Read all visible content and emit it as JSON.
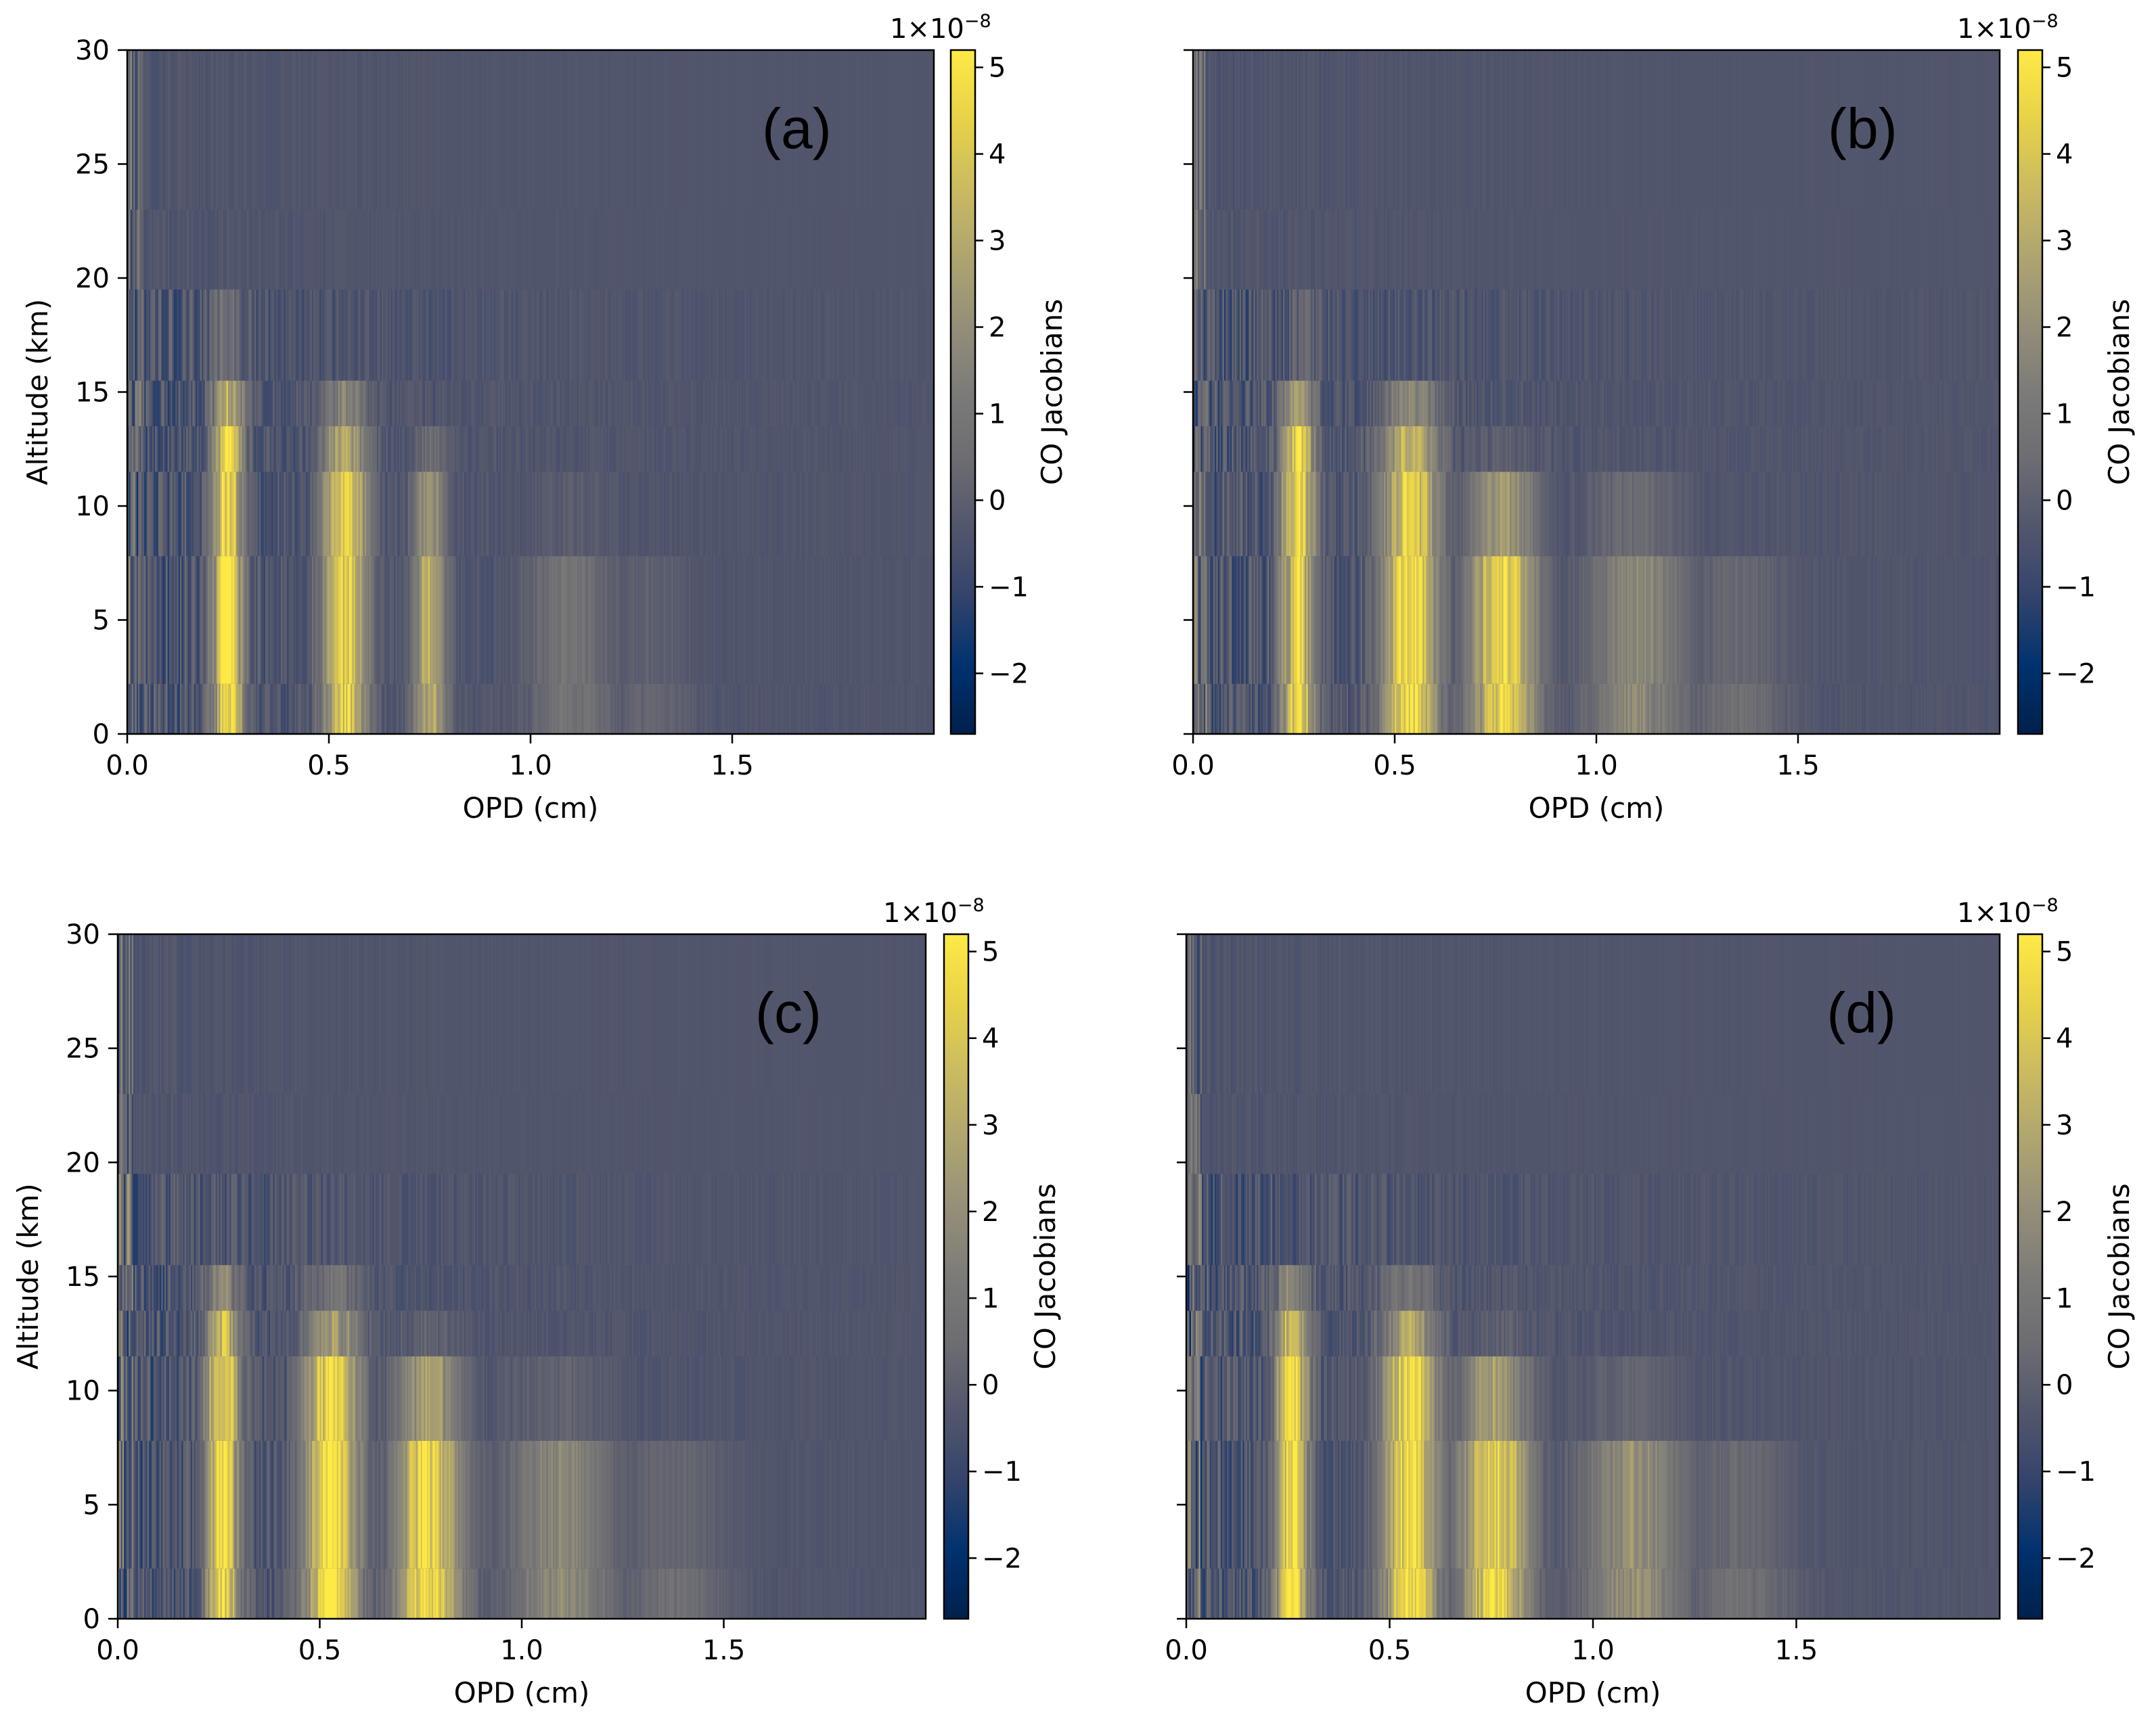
{
  "figure": {
    "colormap": "cividis"
  },
  "chart_data": [
    {
      "type": "heatmap",
      "panel_label": "(a)",
      "xlabel": "OPD (cm)",
      "ylabel": "Altitude (km)",
      "colorbar_label": "CO Jacobians",
      "colorbar_multiplier": "1×10",
      "colorbar_exponent": "−8",
      "xlim": [
        0,
        2.0
      ],
      "ylim": [
        0,
        30
      ],
      "xticks": [
        0.0,
        0.5,
        1.0,
        1.5
      ],
      "xtick_labels": [
        "0.0",
        "0.5",
        "1.0",
        "1.5"
      ],
      "yticks": [
        0,
        5,
        10,
        15,
        20,
        25,
        30
      ],
      "ytick_labels": [
        "0",
        "5",
        "10",
        "15",
        "20",
        "25",
        "30"
      ],
      "clim": [
        -2.7,
        5.2
      ],
      "cticks": [
        -2,
        -1,
        0,
        1,
        2,
        3,
        4,
        5
      ],
      "ctick_labels": [
        "−2",
        "−1",
        "0",
        "1",
        "2",
        "3",
        "4",
        "5"
      ],
      "lobes": [
        {
          "center_opd": 0.25,
          "width_opd": 0.055,
          "peak": 5.2,
          "top_km": 19
        },
        {
          "center_opd": 0.54,
          "width_opd": 0.08,
          "peak": 4.8,
          "top_km": 17
        },
        {
          "center_opd": 0.75,
          "width_opd": 0.06,
          "peak": 3.5,
          "top_km": 14
        },
        {
          "center_opd": 1.1,
          "width_opd": 0.15,
          "peak": 1.2,
          "top_km": 11
        },
        {
          "center_opd": 1.3,
          "width_opd": 0.15,
          "peak": 0.6,
          "top_km": 9
        }
      ]
    },
    {
      "type": "heatmap",
      "panel_label": "(b)",
      "xlabel": "OPD (cm)",
      "ylabel": "",
      "colorbar_label": "CO Jacobians",
      "colorbar_multiplier": "1×10",
      "colorbar_exponent": "−8",
      "xlim": [
        0,
        2.0
      ],
      "ylim": [
        0,
        30
      ],
      "xticks": [
        0.0,
        0.5,
        1.0,
        1.5
      ],
      "xtick_labels": [
        "0.0",
        "0.5",
        "1.0",
        "1.5"
      ],
      "yticks": [
        0,
        5,
        10,
        15,
        20,
        25,
        30
      ],
      "ytick_labels": [
        "",
        "",
        "",
        "",
        "",
        "",
        ""
      ],
      "clim": [
        -2.7,
        5.2
      ],
      "cticks": [
        -2,
        -1,
        0,
        1,
        2,
        3,
        4,
        5
      ],
      "ctick_labels": [
        "−2",
        "−1",
        "0",
        "1",
        "2",
        "3",
        "4",
        "5"
      ],
      "lobes": [
        {
          "center_opd": 0.26,
          "width_opd": 0.06,
          "peak": 5.2,
          "top_km": 18
        },
        {
          "center_opd": 0.54,
          "width_opd": 0.1,
          "peak": 5.2,
          "top_km": 17
        },
        {
          "center_opd": 0.77,
          "width_opd": 0.12,
          "peak": 5.0,
          "top_km": 13
        },
        {
          "center_opd": 1.1,
          "width_opd": 0.17,
          "peak": 2.2,
          "top_km": 12
        },
        {
          "center_opd": 1.35,
          "width_opd": 0.17,
          "peak": 1.0,
          "top_km": 9
        }
      ]
    },
    {
      "type": "heatmap",
      "panel_label": "(c)",
      "xlabel": "OPD (cm)",
      "ylabel": "Altitude (km)",
      "colorbar_label": "CO Jacobians",
      "colorbar_multiplier": "1×10",
      "colorbar_exponent": "−8",
      "xlim": [
        0,
        2.0
      ],
      "ylim": [
        0,
        30
      ],
      "xticks": [
        0.0,
        0.5,
        1.0,
        1.5
      ],
      "xtick_labels": [
        "0.0",
        "0.5",
        "1.0",
        "1.5"
      ],
      "yticks": [
        0,
        5,
        10,
        15,
        20,
        25,
        30
      ],
      "ytick_labels": [
        "0",
        "5",
        "10",
        "15",
        "20",
        "25",
        "30"
      ],
      "clim": [
        -2.7,
        5.2
      ],
      "cticks": [
        -2,
        -1,
        0,
        1,
        2,
        3,
        4,
        5
      ],
      "ctick_labels": [
        "−2",
        "−1",
        "0",
        "1",
        "2",
        "3",
        "4",
        "5"
      ],
      "lobes": [
        {
          "center_opd": 0.26,
          "width_opd": 0.06,
          "peak": 5.2,
          "top_km": 17
        },
        {
          "center_opd": 0.53,
          "width_opd": 0.1,
          "peak": 5.2,
          "top_km": 16
        },
        {
          "center_opd": 0.77,
          "width_opd": 0.12,
          "peak": 5.0,
          "top_km": 13
        },
        {
          "center_opd": 1.1,
          "width_opd": 0.18,
          "peak": 2.2,
          "top_km": 11
        },
        {
          "center_opd": 1.38,
          "width_opd": 0.18,
          "peak": 1.0,
          "top_km": 9
        }
      ]
    },
    {
      "type": "heatmap",
      "panel_label": "(d)",
      "xlabel": "OPD (cm)",
      "ylabel": "",
      "colorbar_label": "CO Jacobians",
      "colorbar_multiplier": "1×10",
      "colorbar_exponent": "−8",
      "xlim": [
        0,
        2.0
      ],
      "ylim": [
        0,
        30
      ],
      "xticks": [
        0.0,
        0.5,
        1.0,
        1.5
      ],
      "xtick_labels": [
        "0.0",
        "0.5",
        "1.0",
        "1.5"
      ],
      "yticks": [
        0,
        5,
        10,
        15,
        20,
        25,
        30
      ],
      "ytick_labels": [
        "",
        "",
        "",
        "",
        "",
        "",
        ""
      ],
      "clim": [
        -2.7,
        5.2
      ],
      "cticks": [
        -2,
        -1,
        0,
        1,
        2,
        3,
        4,
        5
      ],
      "ctick_labels": [
        "−2",
        "−1",
        "0",
        "1",
        "2",
        "3",
        "4",
        "5"
      ],
      "lobes": [
        {
          "center_opd": 0.26,
          "width_opd": 0.06,
          "peak": 5.2,
          "top_km": 17
        },
        {
          "center_opd": 0.55,
          "width_opd": 0.1,
          "peak": 5.2,
          "top_km": 16
        },
        {
          "center_opd": 0.76,
          "width_opd": 0.12,
          "peak": 5.0,
          "top_km": 13
        },
        {
          "center_opd": 1.1,
          "width_opd": 0.18,
          "peak": 2.4,
          "top_km": 11
        },
        {
          "center_opd": 1.36,
          "width_opd": 0.18,
          "peak": 1.1,
          "top_km": 9
        }
      ]
    }
  ]
}
